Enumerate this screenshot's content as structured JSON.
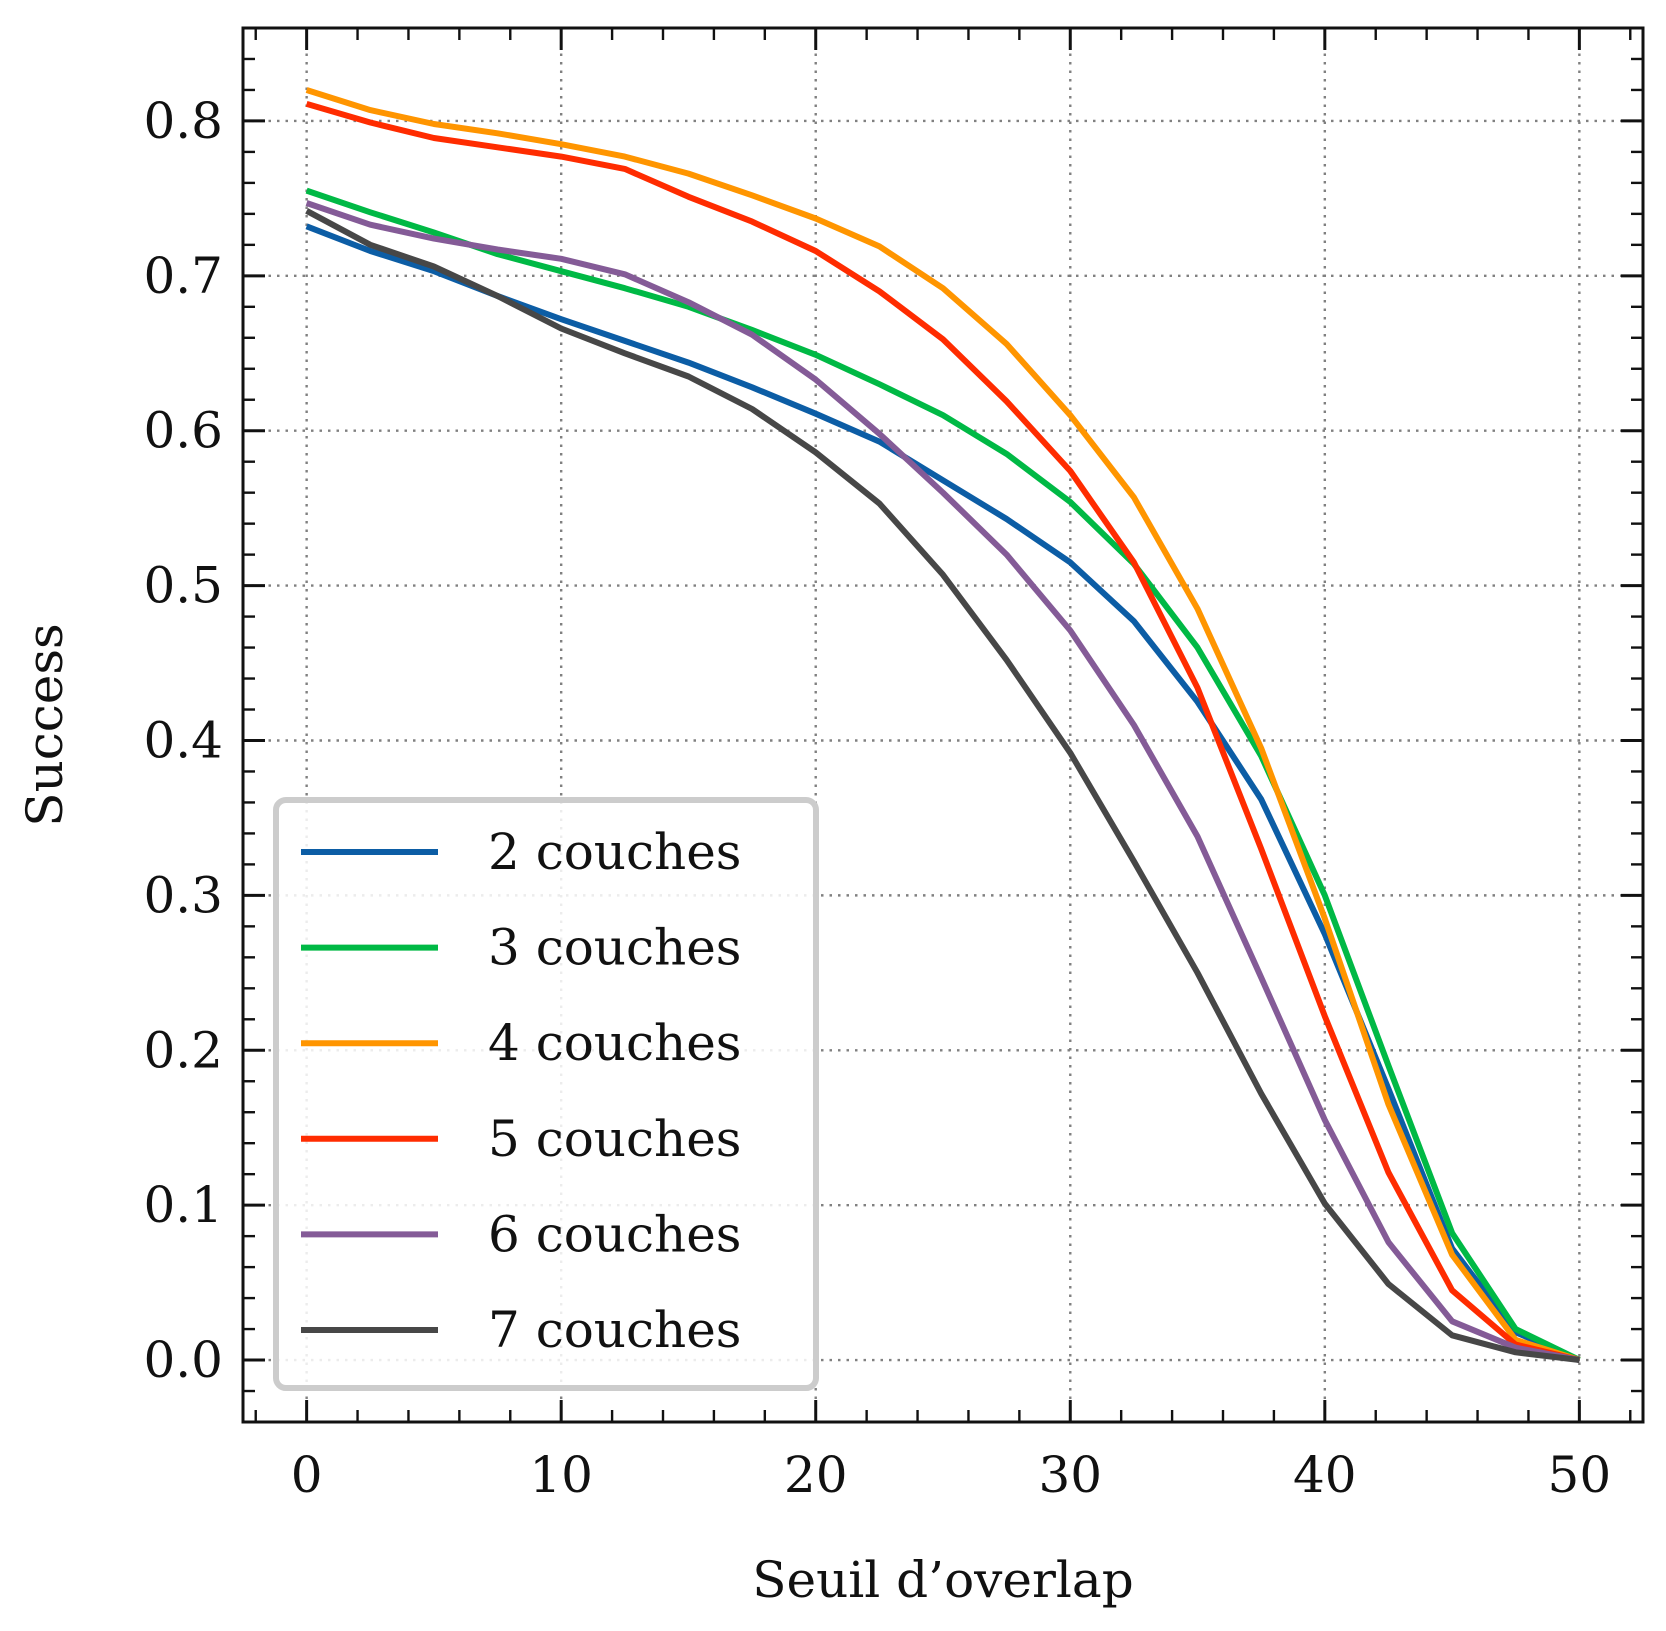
{
  "chart_data": {
    "type": "line",
    "title": "",
    "xlabel": "Seuil d’overlap",
    "ylabel": "Success",
    "xlim": [
      -2.5,
      52.5
    ],
    "ylim": [
      -0.04,
      0.86
    ],
    "xticks": [
      0,
      10,
      20,
      30,
      40,
      50
    ],
    "xtick_labels": [
      "0",
      "10",
      "20",
      "30",
      "40",
      "50"
    ],
    "yticks": [
      0.0,
      0.1,
      0.2,
      0.3,
      0.4,
      0.5,
      0.6,
      0.7,
      0.8
    ],
    "ytick_labels": [
      "0.0",
      "0.1",
      "0.2",
      "0.3",
      "0.4",
      "0.5",
      "0.6",
      "0.7",
      "0.8"
    ],
    "grid": true,
    "legend_position": "lower-left",
    "x": [
      0,
      2.5,
      5,
      7.5,
      10,
      12.5,
      15,
      17.5,
      20,
      22.5,
      25,
      27.5,
      30,
      32.5,
      35,
      37.5,
      40,
      42.5,
      45,
      47.5,
      50
    ],
    "series": [
      {
        "name": "2 couches",
        "color": "#0c5da5",
        "values": [
          0.732,
          0.716,
          0.703,
          0.687,
          0.672,
          0.658,
          0.644,
          0.628,
          0.611,
          0.593,
          0.568,
          0.543,
          0.515,
          0.477,
          0.425,
          0.362,
          0.275,
          0.175,
          0.072,
          0.018,
          0.0
        ]
      },
      {
        "name": "3 couches",
        "color": "#00b945",
        "values": [
          0.755,
          0.741,
          0.728,
          0.714,
          0.703,
          0.692,
          0.68,
          0.665,
          0.649,
          0.63,
          0.61,
          0.585,
          0.554,
          0.514,
          0.46,
          0.39,
          0.3,
          0.19,
          0.082,
          0.02,
          0.0
        ]
      },
      {
        "name": "4 couches",
        "color": "#ff9500",
        "values": [
          0.82,
          0.807,
          0.798,
          0.792,
          0.785,
          0.777,
          0.766,
          0.752,
          0.737,
          0.719,
          0.692,
          0.656,
          0.61,
          0.557,
          0.485,
          0.395,
          0.285,
          0.165,
          0.068,
          0.013,
          0.0
        ]
      },
      {
        "name": "5 couches",
        "color": "#ff2c00",
        "values": [
          0.811,
          0.799,
          0.789,
          0.783,
          0.777,
          0.769,
          0.751,
          0.735,
          0.716,
          0.69,
          0.659,
          0.619,
          0.574,
          0.515,
          0.434,
          0.33,
          0.222,
          0.121,
          0.045,
          0.01,
          0.0
        ]
      },
      {
        "name": "6 couches",
        "color": "#845b97",
        "values": [
          0.747,
          0.733,
          0.724,
          0.717,
          0.711,
          0.701,
          0.683,
          0.662,
          0.633,
          0.598,
          0.56,
          0.52,
          0.471,
          0.41,
          0.338,
          0.247,
          0.155,
          0.076,
          0.025,
          0.008,
          0.0
        ]
      },
      {
        "name": "7 couches",
        "color": "#474747",
        "values": [
          0.742,
          0.72,
          0.706,
          0.687,
          0.666,
          0.65,
          0.635,
          0.614,
          0.586,
          0.553,
          0.507,
          0.452,
          0.392,
          0.322,
          0.25,
          0.172,
          0.101,
          0.049,
          0.016,
          0.005,
          0.0
        ]
      }
    ]
  }
}
